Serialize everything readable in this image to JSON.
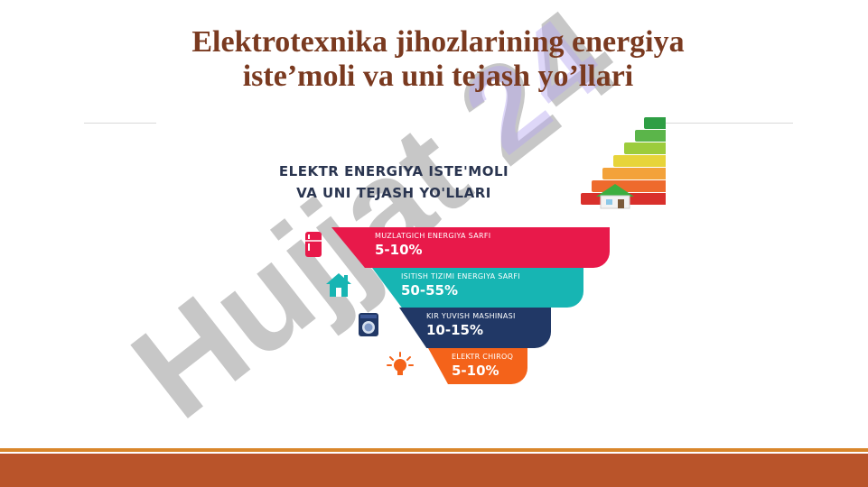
{
  "slide": {
    "title_line1": "Elektrotexnika jihozlarining energiya",
    "title_line2": "iste’moli va uni tejash yo’llari"
  },
  "watermark": {
    "text": "Hujjat 24"
  },
  "infographic": {
    "heading_line1": "ELEKTR ENERGIYA ISTE'MOLI",
    "heading_line2": "VA UNI TEJASH YO'LLARI",
    "items": [
      {
        "label": "MUZLATGICH ENERGIYA SARFI",
        "value": "5-10%",
        "icon": "refrigerator-icon",
        "color": "#e8194a"
      },
      {
        "label": "ISITISH TIZIMI ENERGIYA SARFI",
        "value": "50-55%",
        "icon": "house-heating-icon",
        "color": "#17b5b3"
      },
      {
        "label": "KIR YUVISH MASHINASI",
        "value": "10-15%",
        "icon": "washing-machine-icon",
        "color": "#213866"
      },
      {
        "label": "ELEKTR CHIROQ",
        "value": "5-10%",
        "icon": "light-bulb-icon",
        "color": "#f4631a"
      }
    ],
    "rating_colors": [
      "#2e9e44",
      "#5bb54a",
      "#9ccc3c",
      "#e7d43a",
      "#f3a23a",
      "#ee6a2d",
      "#d9302c"
    ]
  },
  "colors": {
    "title": "#7a3a20",
    "footer": "#b9542a",
    "footer_accent": "#d9862b"
  }
}
